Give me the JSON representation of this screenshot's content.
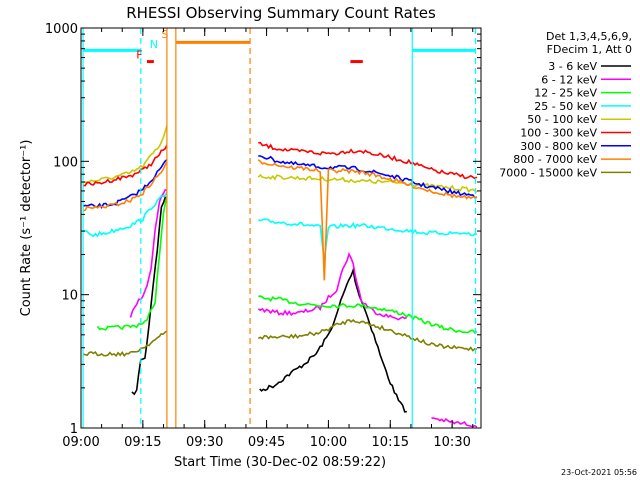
{
  "chart_data": {
    "type": "line",
    "title": "RHESSI Observing Summary Count Rates",
    "xlabel": "Start Time (30-Dec-02 08:59:22)",
    "ylabel": "Count Rate (s⁻¹ detector⁻¹)",
    "y_scale": "log",
    "ylim": [
      1,
      1000
    ],
    "xlim": [
      "09:00",
      "10:37"
    ],
    "x_ticks": [
      "09:00",
      "09:15",
      "09:30",
      "09:45",
      "10:00",
      "10:15",
      "10:30"
    ],
    "y_ticks": [
      {
        "value": 1,
        "label": "1"
      },
      {
        "value": 10,
        "label": "10"
      },
      {
        "value": 100,
        "label": "100"
      },
      {
        "value": 1000,
        "label": "1000"
      }
    ],
    "legend_header": [
      "Det 1,3,4,5,6,9,",
      "FDecim 1, Att 0"
    ],
    "legend_position": "right",
    "series": [
      {
        "name": "3 - 6 keV",
        "color": "#000000",
        "segments": [
          [
            [
              "09:12:20",
              1.8
            ],
            [
              "09:13:30",
              1.9
            ],
            [
              "09:14:30",
              3.3
            ],
            [
              "09:15:30",
              3.3
            ],
            [
              "09:16:30",
              6
            ],
            [
              "09:17:30",
              12
            ],
            [
              "09:18:30",
              22
            ],
            [
              "09:19:30",
              45
            ],
            [
              "09:20:30",
              55
            ]
          ],
          [
            [
              "09:43:20",
              1.9
            ],
            [
              "09:47",
              2.1
            ],
            [
              "09:51",
              2.6
            ],
            [
              "09:54",
              3.0
            ],
            [
              "09:57",
              3.6
            ],
            [
              "10:00",
              5.0
            ],
            [
              "10:02",
              7.0
            ],
            [
              "10:03",
              9.0
            ],
            [
              "10:05",
              13
            ],
            [
              "10:06",
              15
            ],
            [
              "10:07",
              11
            ],
            [
              "10:09",
              7.5
            ],
            [
              "10:11",
              5.0
            ],
            [
              "10:13",
              3.2
            ],
            [
              "10:15",
              2.2
            ],
            [
              "10:17",
              1.6
            ],
            [
              "10:19",
              1.3
            ]
          ]
        ]
      },
      {
        "name": "6 - 12 keV",
        "color": "#ff00ff",
        "segments": [
          [
            [
              "09:12",
              6.8
            ],
            [
              "09:13",
              8.0
            ],
            [
              "09:14",
              9.0
            ],
            [
              "09:15",
              10
            ],
            [
              "09:16",
              12
            ],
            [
              "09:17",
              16
            ],
            [
              "09:18",
              30
            ],
            [
              "09:19",
              48
            ],
            [
              "09:20",
              58
            ],
            [
              "09:20:50",
              62
            ]
          ],
          [
            [
              "09:43",
              7.8
            ],
            [
              "09:48",
              7.3
            ],
            [
              "09:53",
              7.3
            ],
            [
              "09:58",
              8.0
            ],
            [
              "10:00",
              9.5
            ],
            [
              "10:02",
              11
            ],
            [
              "10:03",
              14
            ],
            [
              "10:04",
              17
            ],
            [
              "10:05",
              20
            ],
            [
              "10:06",
              17
            ],
            [
              "10:07",
              12
            ],
            [
              "10:08",
              9.0
            ],
            [
              "10:11",
              7.5
            ],
            [
              "10:15",
              6.8
            ],
            [
              "10:19",
              6.6
            ]
          ],
          [
            [
              "10:25",
              1.2
            ],
            [
              "10:30",
              1.1
            ],
            [
              "10:36",
              1.05
            ]
          ]
        ]
      },
      {
        "name": "12 - 25 keV",
        "color": "#00ff00",
        "segments": [
          [
            [
              "09:04",
              5.6
            ],
            [
              "09:07",
              5.6
            ],
            [
              "09:10",
              5.7
            ],
            [
              "09:13",
              5.8
            ],
            [
              "09:16",
              6.4
            ],
            [
              "09:18",
              9
            ],
            [
              "09:19",
              20
            ],
            [
              "09:20",
              40
            ],
            [
              "09:20:50",
              55
            ]
          ],
          [
            [
              "09:43",
              9.5
            ],
            [
              "09:48",
              9.2
            ],
            [
              "09:53",
              8.6
            ],
            [
              "09:58",
              8.3
            ],
            [
              "10:03",
              8.3
            ],
            [
              "10:08",
              8.3
            ],
            [
              "10:13",
              7.8
            ],
            [
              "10:18",
              7.2
            ],
            [
              "10:23",
              6.3
            ],
            [
              "10:28",
              5.6
            ],
            [
              "10:33",
              5.3
            ],
            [
              "10:36",
              5.2
            ]
          ]
        ]
      },
      {
        "name": "25 - 50 keV",
        "color": "#00ffff",
        "segments": [
          [
            [
              "09:00:30",
              30
            ],
            [
              "09:03",
              28
            ],
            [
              "09:06",
              29
            ],
            [
              "09:09",
              31
            ],
            [
              "09:12",
              33
            ],
            [
              "09:15",
              37
            ],
            [
              "09:17",
              45
            ],
            [
              "09:19",
              52
            ],
            [
              "09:20:50",
              57
            ]
          ],
          [
            [
              "09:43",
              36
            ],
            [
              "09:48",
              35
            ],
            [
              "09:52",
              34
            ],
            [
              "09:56",
              33
            ],
            [
              "09:58",
              32
            ],
            [
              "09:59",
              18
            ],
            [
              "10:00",
              32
            ],
            [
              "10:04",
              33
            ],
            [
              "10:08",
              33
            ],
            [
              "10:12",
              32
            ],
            [
              "10:16",
              31
            ],
            [
              "10:20",
              30
            ],
            [
              "10:24",
              29
            ],
            [
              "10:28",
              29
            ],
            [
              "10:32",
              29
            ],
            [
              "10:36",
              28
            ]
          ]
        ]
      },
      {
        "name": "50 - 100 keV",
        "color": "#c8c800",
        "segments": [
          [
            [
              "09:00:30",
              70
            ],
            [
              "09:04",
              72
            ],
            [
              "09:08",
              76
            ],
            [
              "09:12",
              82
            ],
            [
              "09:15",
              92
            ],
            [
              "09:17",
              110
            ],
            [
              "09:19",
              130
            ],
            [
              "09:20:30",
              170
            ],
            [
              "09:20:50",
              190
            ]
          ],
          [
            [
              "09:43",
              77
            ],
            [
              "09:48",
              76
            ],
            [
              "09:53",
              75
            ],
            [
              "09:58",
              74
            ],
            [
              "10:03",
              73
            ],
            [
              "10:08",
              71
            ],
            [
              "10:13",
              70
            ],
            [
              "10:18",
              69
            ],
            [
              "10:23",
              66
            ],
            [
              "10:28",
              64
            ],
            [
              "10:33",
              62
            ],
            [
              "10:36",
              60
            ]
          ]
        ]
      },
      {
        "name": "100 - 300 keV",
        "color": "#ff0000",
        "segments": [
          [
            [
              "09:00:30",
              67
            ],
            [
              "09:04",
              68
            ],
            [
              "09:08",
              73
            ],
            [
              "09:12",
              78
            ],
            [
              "09:15",
              86
            ],
            [
              "09:17",
              96
            ],
            [
              "09:19",
              112
            ],
            [
              "09:20:50",
              132
            ]
          ],
          [
            [
              "09:43",
              135
            ],
            [
              "09:47",
              126
            ],
            [
              "09:51",
              120
            ],
            [
              "09:55",
              118
            ],
            [
              "09:58",
              115
            ],
            [
              "10:02",
              115
            ],
            [
              "10:05",
              120
            ],
            [
              "10:08",
              120
            ],
            [
              "10:12",
              112
            ],
            [
              "10:16",
              105
            ],
            [
              "10:20",
              98
            ],
            [
              "10:24",
              88
            ],
            [
              "10:28",
              82
            ],
            [
              "10:32",
              78
            ],
            [
              "10:36",
              75
            ]
          ]
        ]
      },
      {
        "name": "300 - 800 keV",
        "color": "#0000ff",
        "segments": [
          [
            [
              "09:00:30",
              46
            ],
            [
              "09:04",
              46
            ],
            [
              "09:08",
              48
            ],
            [
              "09:12",
              54
            ],
            [
              "09:15",
              62
            ],
            [
              "09:17",
              72
            ],
            [
              "09:19",
              86
            ],
            [
              "09:20:50",
              102
            ]
          ],
          [
            [
              "09:43",
              112
            ],
            [
              "09:47",
              102
            ],
            [
              "09:51",
              96
            ],
            [
              "09:55",
              93
            ],
            [
              "09:59",
              90
            ],
            [
              "10:03",
              90
            ],
            [
              "10:07",
              88
            ],
            [
              "10:11",
              83
            ],
            [
              "10:15",
              78
            ],
            [
              "10:19",
              72
            ],
            [
              "10:23",
              66
            ],
            [
              "10:27",
              62
            ],
            [
              "10:31",
              58
            ],
            [
              "10:36",
              55
            ]
          ]
        ]
      },
      {
        "name": "800 - 7000 keV",
        "color": "#ff8000",
        "segments": [
          [
            [
              "09:00:30",
              44
            ],
            [
              "09:04",
              45
            ],
            [
              "09:08",
              47
            ],
            [
              "09:12",
              51
            ],
            [
              "09:15",
              58
            ],
            [
              "09:17",
              68
            ],
            [
              "09:19",
              80
            ],
            [
              "09:20:50",
              96
            ]
          ],
          [
            [
              "09:43",
              100
            ],
            [
              "09:47",
              95
            ],
            [
              "09:51",
              90
            ],
            [
              "09:55",
              88
            ],
            [
              "09:58",
              85
            ],
            [
              "09:59",
              13
            ],
            [
              "10:00",
              85
            ],
            [
              "10:04",
              85
            ],
            [
              "10:08",
              83
            ],
            [
              "10:12",
              78
            ],
            [
              "10:16",
              72
            ],
            [
              "10:20",
              66
            ],
            [
              "10:24",
              61
            ],
            [
              "10:28",
              57
            ],
            [
              "10:32",
              54
            ],
            [
              "10:36",
              52
            ]
          ]
        ]
      },
      {
        "name": "7000 - 15000 keV",
        "color": "#808000",
        "segments": [
          [
            [
              "09:00:30",
              3.6
            ],
            [
              "09:04",
              3.6
            ],
            [
              "09:08",
              3.6
            ],
            [
              "09:12",
              3.6
            ],
            [
              "09:15",
              4.0
            ],
            [
              "09:17",
              4.4
            ],
            [
              "09:19",
              4.8
            ],
            [
              "09:20:50",
              5.3
            ]
          ],
          [
            [
              "09:43",
              4.8
            ],
            [
              "09:48",
              4.8
            ],
            [
              "09:53",
              4.9
            ],
            [
              "09:58",
              5.2
            ],
            [
              "10:03",
              6.1
            ],
            [
              "10:06",
              6.5
            ],
            [
              "10:10",
              6.0
            ],
            [
              "10:15",
              5.4
            ],
            [
              "10:20",
              4.8
            ],
            [
              "10:25",
              4.2
            ],
            [
              "10:30",
              4.0
            ],
            [
              "10:36",
              3.9
            ]
          ]
        ]
      }
    ],
    "vertical_lines": [
      {
        "time": "09:00:30",
        "color": "#00ffff",
        "style": "solid"
      },
      {
        "time": "09:14:30",
        "color": "#00ffff",
        "style": "dashed"
      },
      {
        "time": "09:20:50",
        "color": "#ff8000",
        "style": "solid"
      },
      {
        "time": "09:23:00",
        "color": "#ff8000",
        "style": "solid"
      },
      {
        "time": "09:41:00",
        "color": "#ff8000",
        "style": "dashed"
      },
      {
        "time": "10:20:20",
        "color": "#00ffff",
        "style": "solid"
      },
      {
        "time": "10:35:40",
        "color": "#00ffff",
        "style": "dashed"
      }
    ],
    "top_bars": [
      {
        "start": "09:00:30",
        "end": "09:14:30",
        "value": 680,
        "color": "#00ffff"
      },
      {
        "start": "09:23:00",
        "end": "09:41:00",
        "value": 780,
        "color": "#ff8000"
      },
      {
        "start": "10:20:20",
        "end": "10:35:40",
        "value": 680,
        "color": "#00ffff"
      },
      {
        "start": "09:16:00",
        "end": "09:17:40",
        "value": 560,
        "color": "#ff0000"
      },
      {
        "start": "10:05:20",
        "end": "10:08:20",
        "value": 560,
        "color": "#ff0000"
      }
    ],
    "flag_labels": [
      {
        "text": "F",
        "time": "09:14:10",
        "value": 590,
        "color": "#ff0000"
      },
      {
        "text": "N",
        "time": "09:17:40",
        "value": 710,
        "color": "#00ffff"
      },
      {
        "text": "S",
        "time": "09:20:20",
        "value": 840,
        "color": "#ff8000"
      }
    ],
    "footer_timestamp": "23-Oct-2021 05:56"
  }
}
